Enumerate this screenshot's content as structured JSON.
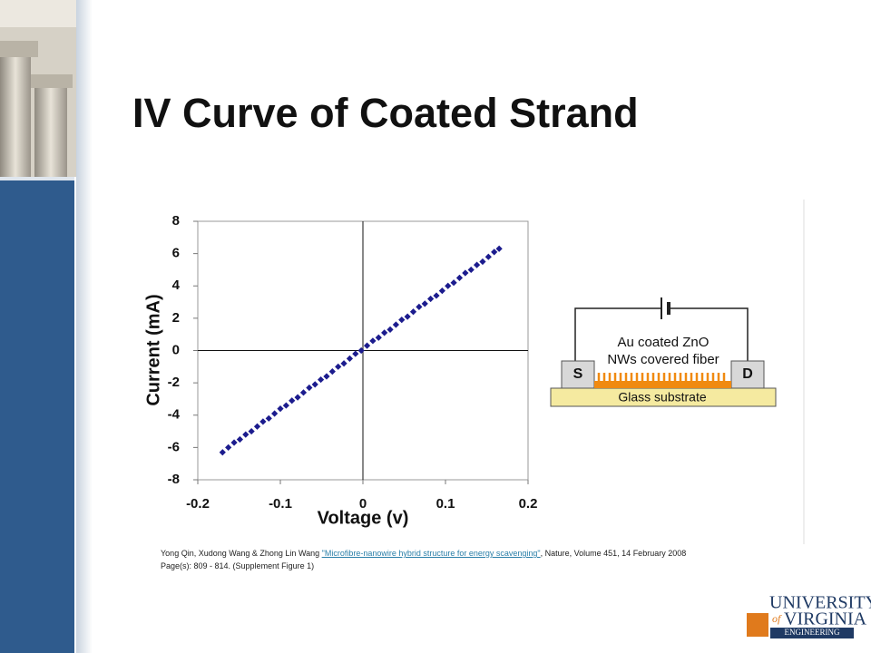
{
  "header": {
    "title": "IV Curve of Coated Strand"
  },
  "chart_data": {
    "type": "scatter",
    "xlabel": "Voltage (v)",
    "ylabel": "Current (mA)",
    "xlim": [
      -0.2,
      0.2
    ],
    "xticks": [
      -0.2,
      -0.1,
      0,
      0.1,
      0.2
    ],
    "ylim": [
      -8,
      8
    ],
    "yticks": [
      -8,
      -6,
      -4,
      -2,
      0,
      2,
      4,
      6,
      8
    ],
    "series": [
      {
        "color": "#1c1c8e",
        "x": [
          -0.17,
          -0.163,
          -0.156,
          -0.149,
          -0.142,
          -0.135,
          -0.128,
          -0.121,
          -0.114,
          -0.107,
          -0.1,
          -0.093,
          -0.086,
          -0.079,
          -0.072,
          -0.065,
          -0.058,
          -0.051,
          -0.044,
          -0.037,
          -0.03,
          -0.023,
          -0.016,
          -0.009,
          -0.002,
          0.005,
          0.012,
          0.019,
          0.026,
          0.033,
          0.04,
          0.047,
          0.054,
          0.061,
          0.068,
          0.075,
          0.082,
          0.089,
          0.096,
          0.103,
          0.11,
          0.117,
          0.124,
          0.131,
          0.138,
          0.145,
          0.152,
          0.159,
          0.165
        ],
        "values": [
          -6.3,
          -6.0,
          -5.7,
          -5.5,
          -5.2,
          -5.0,
          -4.7,
          -4.4,
          -4.2,
          -3.9,
          -3.6,
          -3.4,
          -3.1,
          -2.9,
          -2.6,
          -2.3,
          -2.1,
          -1.8,
          -1.6,
          -1.3,
          -1.0,
          -0.8,
          -0.5,
          -0.2,
          0.0,
          0.3,
          0.6,
          0.8,
          1.1,
          1.3,
          1.6,
          1.9,
          2.1,
          2.4,
          2.7,
          2.9,
          3.2,
          3.4,
          3.7,
          4.0,
          4.2,
          4.5,
          4.8,
          5.0,
          5.3,
          5.5,
          5.8,
          6.1,
          6.3
        ]
      }
    ]
  },
  "diagram": {
    "fiber_label_1": "Au coated ZnO",
    "fiber_label_2": "NWs covered fiber",
    "source": "S",
    "drain": "D",
    "substrate": "Glass substrate"
  },
  "citation": {
    "authors": "Yong Qin, Xudong Wang & Zhong Lin Wang ",
    "link": "\"Microfibre-nanowire hybrid structure for energy scavenging\"",
    "rest": ",  Nature, Volume 451, 14 February 2008 Page(s): 809 - 814. (Supplement Figure 1)"
  },
  "logo": {
    "line1": "UNIVERSITY",
    "of": "of",
    "line2": "VIRGINIA",
    "line3": "ENGINEERING"
  }
}
